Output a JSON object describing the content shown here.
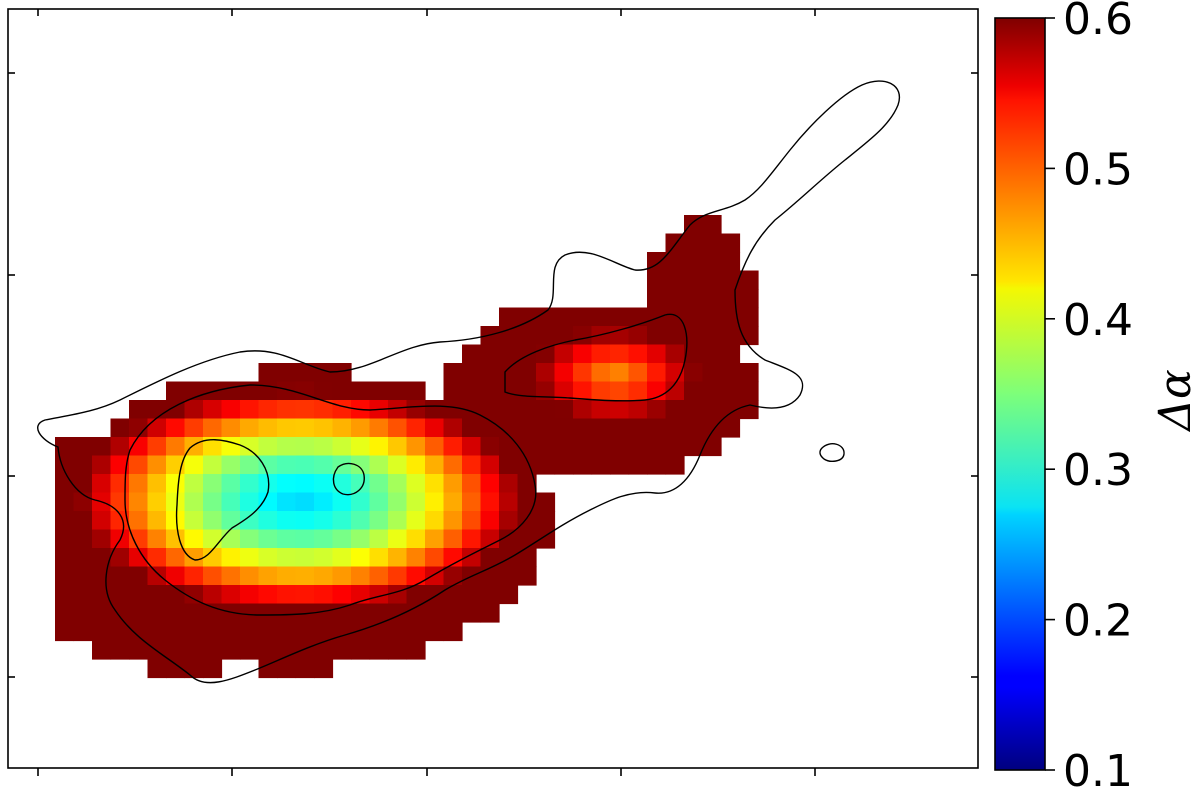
{
  "chart_data": {
    "type": "heatmap",
    "title": "",
    "xlabel": "",
    "ylabel": "",
    "x_ticks_labeled": false,
    "y_ticks_labeled": false,
    "grid": false,
    "colormap": "jet",
    "nan_color": "#ffffff",
    "grid_size": [
      38,
      32
    ],
    "colorbar": {
      "label": "Δα",
      "min": 0.1,
      "max": 0.6,
      "ticks": [
        0.1,
        0.2,
        0.3,
        0.4,
        0.5,
        0.6
      ],
      "tick_labels": [
        "0.1",
        "0.2",
        "0.3",
        "0.4",
        "0.5",
        "0.6"
      ],
      "position": "right"
    },
    "value_field_description_rows": [
      "Map values range ~0.27 (core, cyan) to ≥0.6 (edges, dark red)"
    ],
    "contour_color": "#000000"
  }
}
